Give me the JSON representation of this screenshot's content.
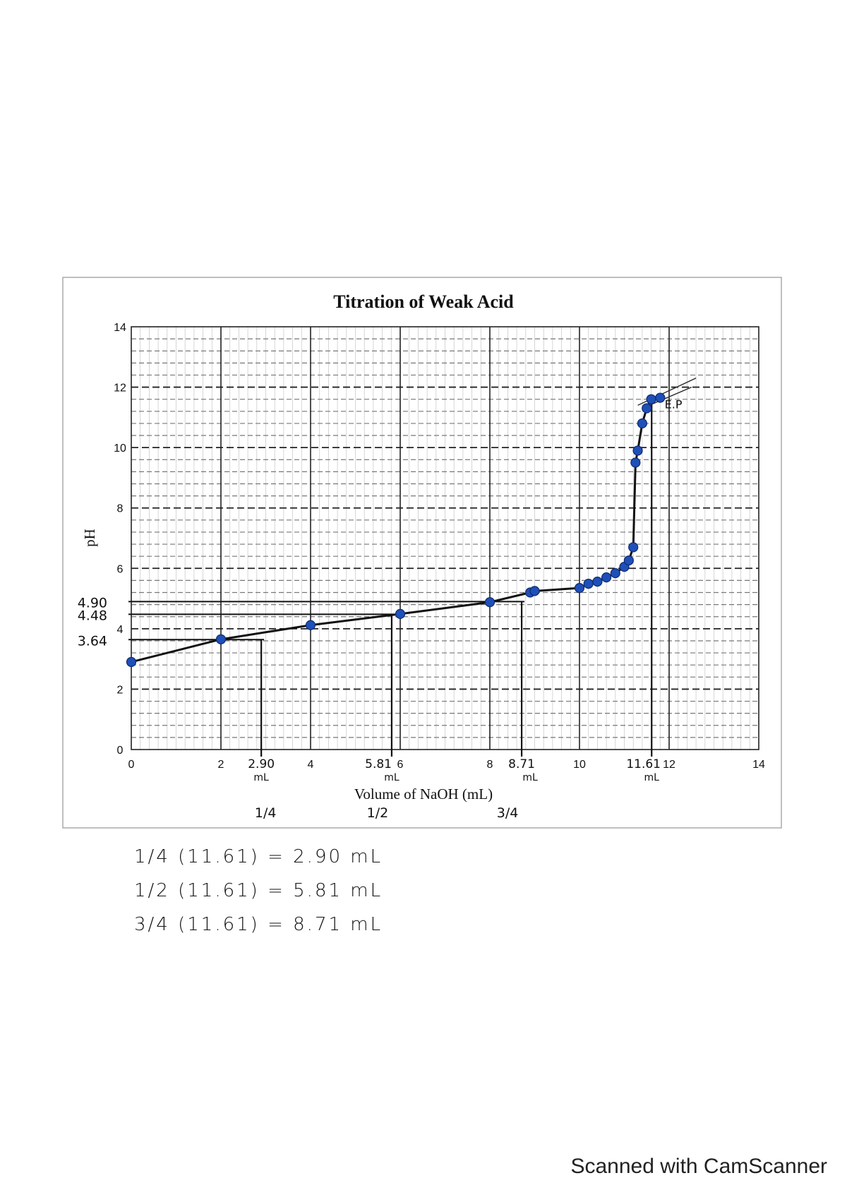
{
  "chart_data": {
    "type": "scatter",
    "title": "Titration of Weak Acid",
    "xlabel": "Volume of NaOH (mL)",
    "ylabel": "pH",
    "xlim": [
      0,
      14
    ],
    "ylim": [
      0,
      14
    ],
    "xticks": [
      "0",
      "2",
      "4",
      "6",
      "8",
      "10",
      "12",
      "14"
    ],
    "yticks": [
      "0",
      "2",
      "4",
      "6",
      "8",
      "10",
      "12",
      "14"
    ],
    "grid": true,
    "marker_color": "#1f4fb8",
    "points": [
      [
        0,
        2.9
      ],
      [
        2,
        3.65
      ],
      [
        4,
        4.12
      ],
      [
        6,
        4.49
      ],
      [
        8,
        4.88
      ],
      [
        8.9,
        5.2
      ],
      [
        9,
        5.25
      ],
      [
        10,
        5.35
      ],
      [
        10.2,
        5.49
      ],
      [
        10.4,
        5.56
      ],
      [
        10.6,
        5.7
      ],
      [
        10.8,
        5.84
      ],
      [
        11,
        6.05
      ],
      [
        11.1,
        6.26
      ],
      [
        11.2,
        6.7
      ],
      [
        11.25,
        9.5
      ],
      [
        11.3,
        9.9
      ],
      [
        11.4,
        10.8
      ],
      [
        11.5,
        11.3
      ],
      [
        11.6,
        11.6
      ],
      [
        11.8,
        11.65
      ]
    ],
    "annotations": {
      "ph_marks": [
        {
          "label": "4.90",
          "ph": 4.9,
          "volume": 8.71
        },
        {
          "label": "4.48",
          "ph": 4.48,
          "volume": 5.81
        },
        {
          "label": "3.64",
          "ph": 3.64,
          "volume": 2.9
        }
      ],
      "volume_marks": [
        {
          "label": "2.90",
          "unit": "mL",
          "fraction": "1/4",
          "volume": 2.9,
          "ph": 3.64
        },
        {
          "label": "5.81",
          "unit": "mL",
          "fraction": "1/2",
          "volume": 5.81,
          "ph": 4.48
        },
        {
          "label": "8.71",
          "unit": "mL",
          "fraction": "3/4",
          "volume": 8.71,
          "ph": 4.9
        },
        {
          "label": "11.61",
          "unit": "mL",
          "fraction": "",
          "volume": 11.61,
          "ph": 11.6
        }
      ],
      "endpoint_label": "E.P"
    }
  },
  "notes": [
    "1/4 (11.61) = 2.90 mL",
    "1/2 (11.61) = 5.81 mL",
    "3/4 (11.61) = 8.71 mL"
  ],
  "footer": "Scanned with CamScanner"
}
